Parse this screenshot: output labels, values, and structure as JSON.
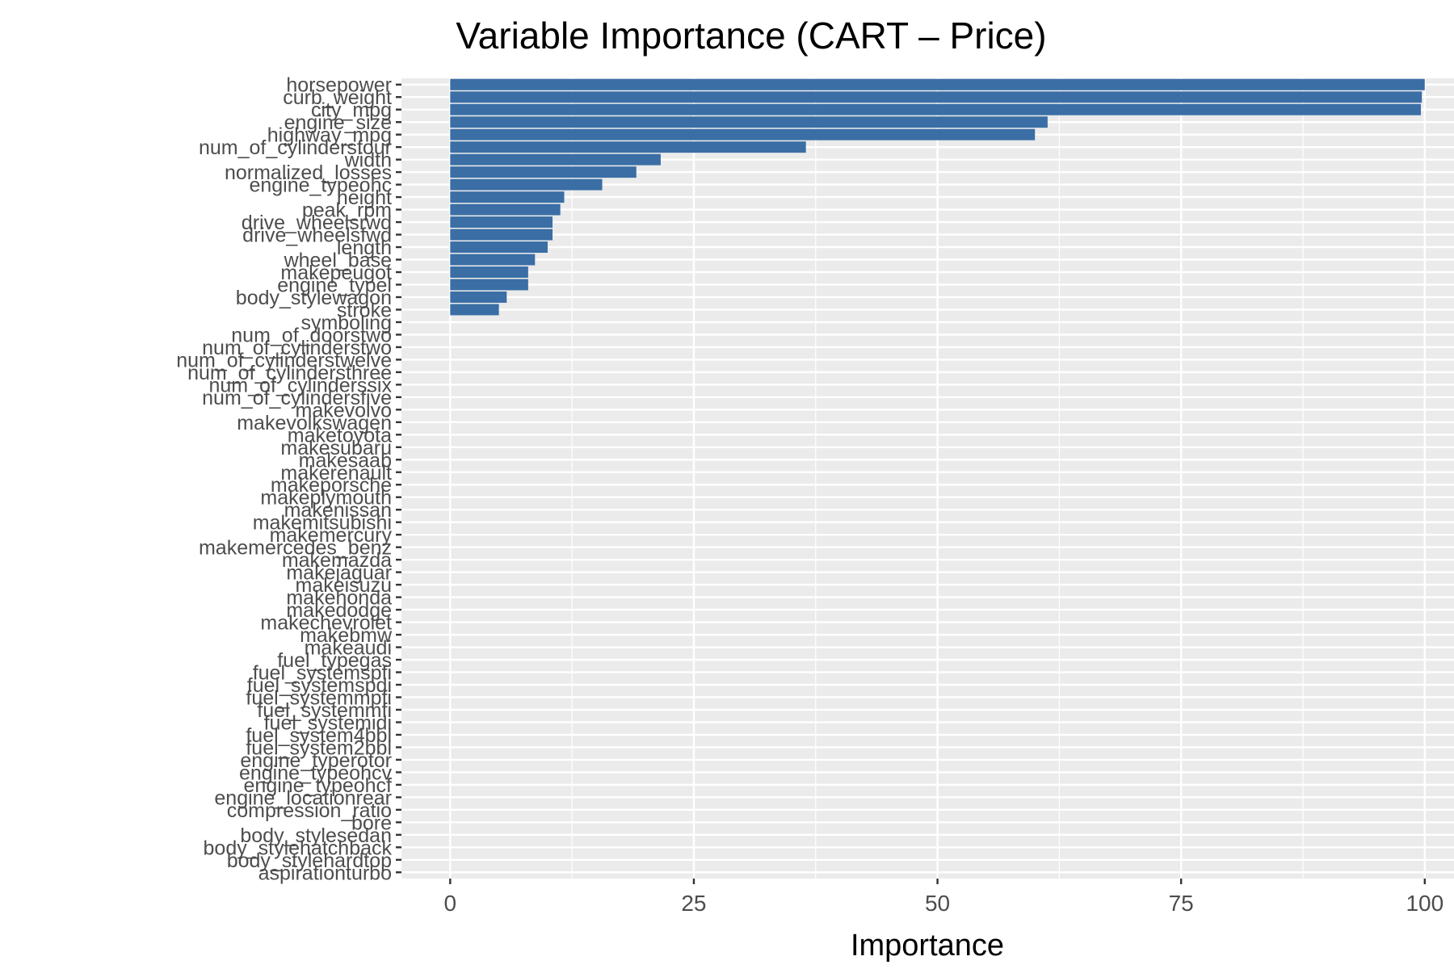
{
  "chart_data": {
    "type": "bar",
    "orientation": "horizontal",
    "title": "Variable Importance (CART – Price)",
    "xlabel": "Importance",
    "ylabel": "",
    "xlim": [
      -5,
      103
    ],
    "xticks": [
      0,
      25,
      50,
      75,
      100
    ],
    "grid": true,
    "legend": "none",
    "bar_color": "#3a6ea5",
    "panel_color": "#ebebeb",
    "categories": [
      "horsepower",
      "curb_weight",
      "city_mpg",
      "engine_size",
      "highway_mpg",
      "num_of_cylindersfour",
      "width",
      "normalized_losses",
      "engine_typeohc",
      "height",
      "peak_rpm",
      "drive_wheelsrwd",
      "drive_wheelsfwd",
      "length",
      "wheel_base",
      "makepeugot",
      "engine_typel",
      "body_stylewagon",
      "stroke",
      "symboling",
      "num_of_doorstwo",
      "num_of_cylinderstwo",
      "num_of_cylinderstwelve",
      "num_of_cylindersthree",
      "num_of_cylinderssix",
      "num_of_cylindersfive",
      "makevolvo",
      "makevolkswagen",
      "maketoyota",
      "makesubaru",
      "makesaab",
      "makerenault",
      "makeporsche",
      "makeplymouth",
      "makenissan",
      "makemitsubishi",
      "makemercury",
      "makemercedes_benz",
      "makemazda",
      "makejaguar",
      "makeisuzu",
      "makehonda",
      "makedodge",
      "makechevrolet",
      "makebmw",
      "makeaudi",
      "fuel_typegas",
      "fuel_systemspfi",
      "fuel_systemspdi",
      "fuel_systemmpfi",
      "fuel_systemmfi",
      "fuel_systemidi",
      "fuel_system4bbl",
      "fuel_system2bbl",
      "engine_typerotor",
      "engine_typeohcv",
      "engine_typeohcf",
      "engine_locationrear",
      "compression_ratio",
      "bore",
      "body_stylesedan",
      "body_stylehatchback",
      "body_stylehardtop",
      "aspirationturbo"
    ],
    "values": [
      100,
      99.7,
      99.6,
      61.3,
      60,
      36.5,
      21.6,
      19.1,
      15.6,
      11.7,
      11.3,
      10.5,
      10.5,
      10.0,
      8.7,
      8.0,
      8.0,
      5.8,
      5.0,
      0,
      0,
      0,
      0,
      0,
      0,
      0,
      0,
      0,
      0,
      0,
      0,
      0,
      0,
      0,
      0,
      0,
      0,
      0,
      0,
      0,
      0,
      0,
      0,
      0,
      0,
      0,
      0,
      0,
      0,
      0,
      0,
      0,
      0,
      0,
      0,
      0,
      0,
      0,
      0,
      0,
      0,
      0,
      0,
      0
    ]
  }
}
